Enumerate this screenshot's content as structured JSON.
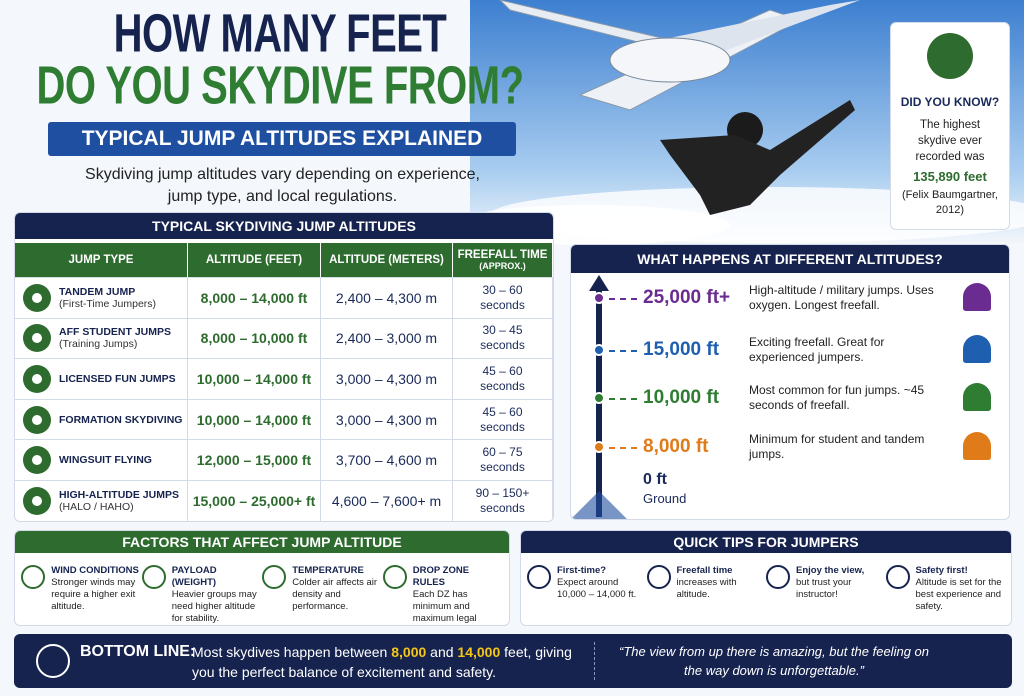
{
  "header": {
    "title_line1": "HOW MANY FEET",
    "title_line2": "DO YOU SKYDIVE FROM?",
    "banner": "TYPICAL JUMP ALTITUDES EXPLAINED",
    "intro": "Skydiving jump altitudes vary depending on experience, jump type, and local regulations."
  },
  "did_you_know": {
    "heading": "DID YOU KNOW?",
    "text": "The highest skydive ever recorded was",
    "highlight": "135,890 feet",
    "note": "(Felix Baumgartner, 2012)"
  },
  "jump_table": {
    "title": "TYPICAL SKYDIVING JUMP ALTITUDES",
    "columns": [
      "JUMP TYPE",
      "ALTITUDE (FEET)",
      "ALTITUDE (METERS)",
      "FREEFALL TIME"
    ],
    "freefall_note": "(APPROX.)",
    "rows": [
      {
        "name": "TANDEM JUMP",
        "detail": "(First-Time Jumpers)",
        "feet": "8,000 – 14,000 ft",
        "meters": "2,400 – 4,300 m",
        "freefall": "30 – 60 seconds"
      },
      {
        "name": "AFF STUDENT JUMPS",
        "detail": "(Training Jumps)",
        "feet": "8,000 – 10,000 ft",
        "meters": "2,400 – 3,000 m",
        "freefall": "30 – 45 seconds"
      },
      {
        "name": "LICENSED FUN JUMPS",
        "feet": "10,000 – 14,000 ft",
        "meters": "3,000 – 4,300 m",
        "freefall": "45 – 60 seconds"
      },
      {
        "name": "FORMATION SKYDIVING",
        "feet": "10,000 – 14,000 ft",
        "meters": "3,000 – 4,300 m",
        "freefall": "45 – 60 seconds"
      },
      {
        "name": "WINGSUIT FLYING",
        "feet": "12,000 – 15,000 ft",
        "meters": "3,700 – 4,600 m",
        "freefall": "60 – 75 seconds"
      },
      {
        "name": "HIGH-ALTITUDE JUMPS",
        "detail": "(HALO / HAHO)",
        "feet": "15,000 – 25,000+ ft",
        "meters": "4,600 – 7,600+ m",
        "freefall": "90 – 150+ seconds"
      }
    ]
  },
  "altitudes": {
    "title": "WHAT HAPPENS AT DIFFERENT ALTITUDES?",
    "levels": [
      {
        "altitude": "25,000 ft+",
        "description": "High-altitude / military jumps. Uses oxygen. Longest freefall.",
        "color": "#6a2c91"
      },
      {
        "altitude": "15,000 ft",
        "description": "Exciting freefall. Great for experienced jumpers.",
        "color": "#1f5fb0"
      },
      {
        "altitude": "10,000 ft",
        "description": "Most common for fun jumps. ~45 seconds of freefall.",
        "color": "#2e7d32"
      },
      {
        "altitude": "8,000 ft",
        "description": "Minimum for student and tandem jumps.",
        "color": "#e07b1a"
      },
      {
        "altitude": "0 ft",
        "description": "Ground",
        "color": "#1a2a5a"
      }
    ]
  },
  "factors": {
    "title": "FACTORS THAT AFFECT JUMP ALTITUDE",
    "items": [
      {
        "heading": "WIND CONDITIONS",
        "text": "Stronger winds may require a higher exit altitude."
      },
      {
        "heading": "PAYLOAD (WEIGHT)",
        "text": "Heavier groups may need higher altitude for stability."
      },
      {
        "heading": "TEMPERATURE",
        "text": "Colder air affects air density and performance."
      },
      {
        "heading": "DROP ZONE RULES",
        "text": "Each DZ has minimum and maximum legal altitudes."
      }
    ]
  },
  "tips": {
    "title": "QUICK TIPS FOR JUMPERS",
    "items": [
      {
        "heading": "First-time?",
        "text": "Expect around 10,000 – 14,000 ft."
      },
      {
        "heading": "Freefall time",
        "text": "increases with altitude."
      },
      {
        "heading": "Enjoy the view,",
        "text": "but trust your instructor!"
      },
      {
        "heading": "Safety first!",
        "text": "Altitude is set for the best experience and safety."
      }
    ]
  },
  "bottom_line": {
    "label": "BOTTOM LINE:",
    "before": "Most skydives happen between",
    "low": "8,000",
    "middle": "and",
    "high": "14,000",
    "after": "feet, giving you the perfect balance of excitement and safety.",
    "quote": "“The view from up there is amazing, but the feeling on the way down is unforgettable.”"
  }
}
